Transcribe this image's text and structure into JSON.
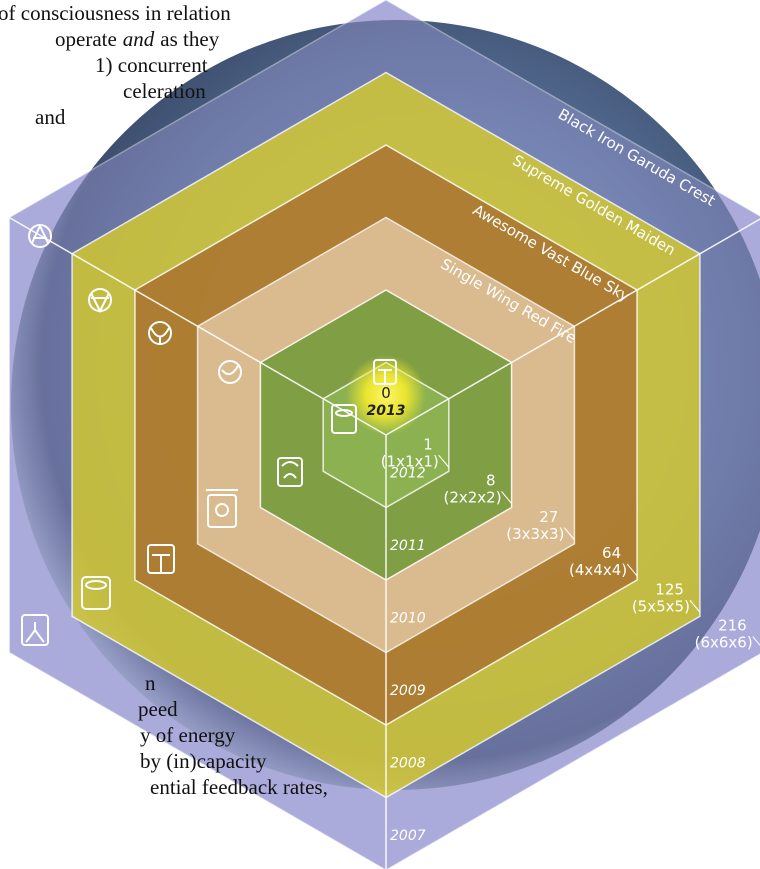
{
  "text_top": [
    {
      "text": "of consciousness in relation"
    },
    {
      "text": "operate",
      "italic": "and",
      "after": "as they"
    },
    {
      "text": "1) concurrent"
    },
    {
      "text": "celeration"
    },
    {
      "text": "and"
    }
  ],
  "text_bottom": [
    {
      "text": "n"
    },
    {
      "text": "peed"
    },
    {
      "text": "y of energy"
    },
    {
      "text": "by (in)capacity"
    },
    {
      "text": "ential feedback rates,"
    }
  ],
  "rings": [
    {
      "name": "Black Iron Garuda Crest",
      "value": 216,
      "formula": "(6x6x6)",
      "year": "2007"
    },
    {
      "name": "Supreme Golden Maiden",
      "value": 125,
      "formula": "(5x5x5)",
      "year": "2008"
    },
    {
      "name": "Awesome Vast Blue Sky",
      "value": 64,
      "formula": "(4x4x4)",
      "year": "2009"
    },
    {
      "name": "Single Wing Red Fire",
      "value": 27,
      "formula": "(3x3x3)",
      "year": "2010"
    },
    {
      "value": 8,
      "formula": "(2x2x2)",
      "year": "2011"
    },
    {
      "value": 1,
      "formula": "(1x1x1)",
      "year": "2012"
    }
  ],
  "center": {
    "value": 0,
    "year": "2013"
  }
}
